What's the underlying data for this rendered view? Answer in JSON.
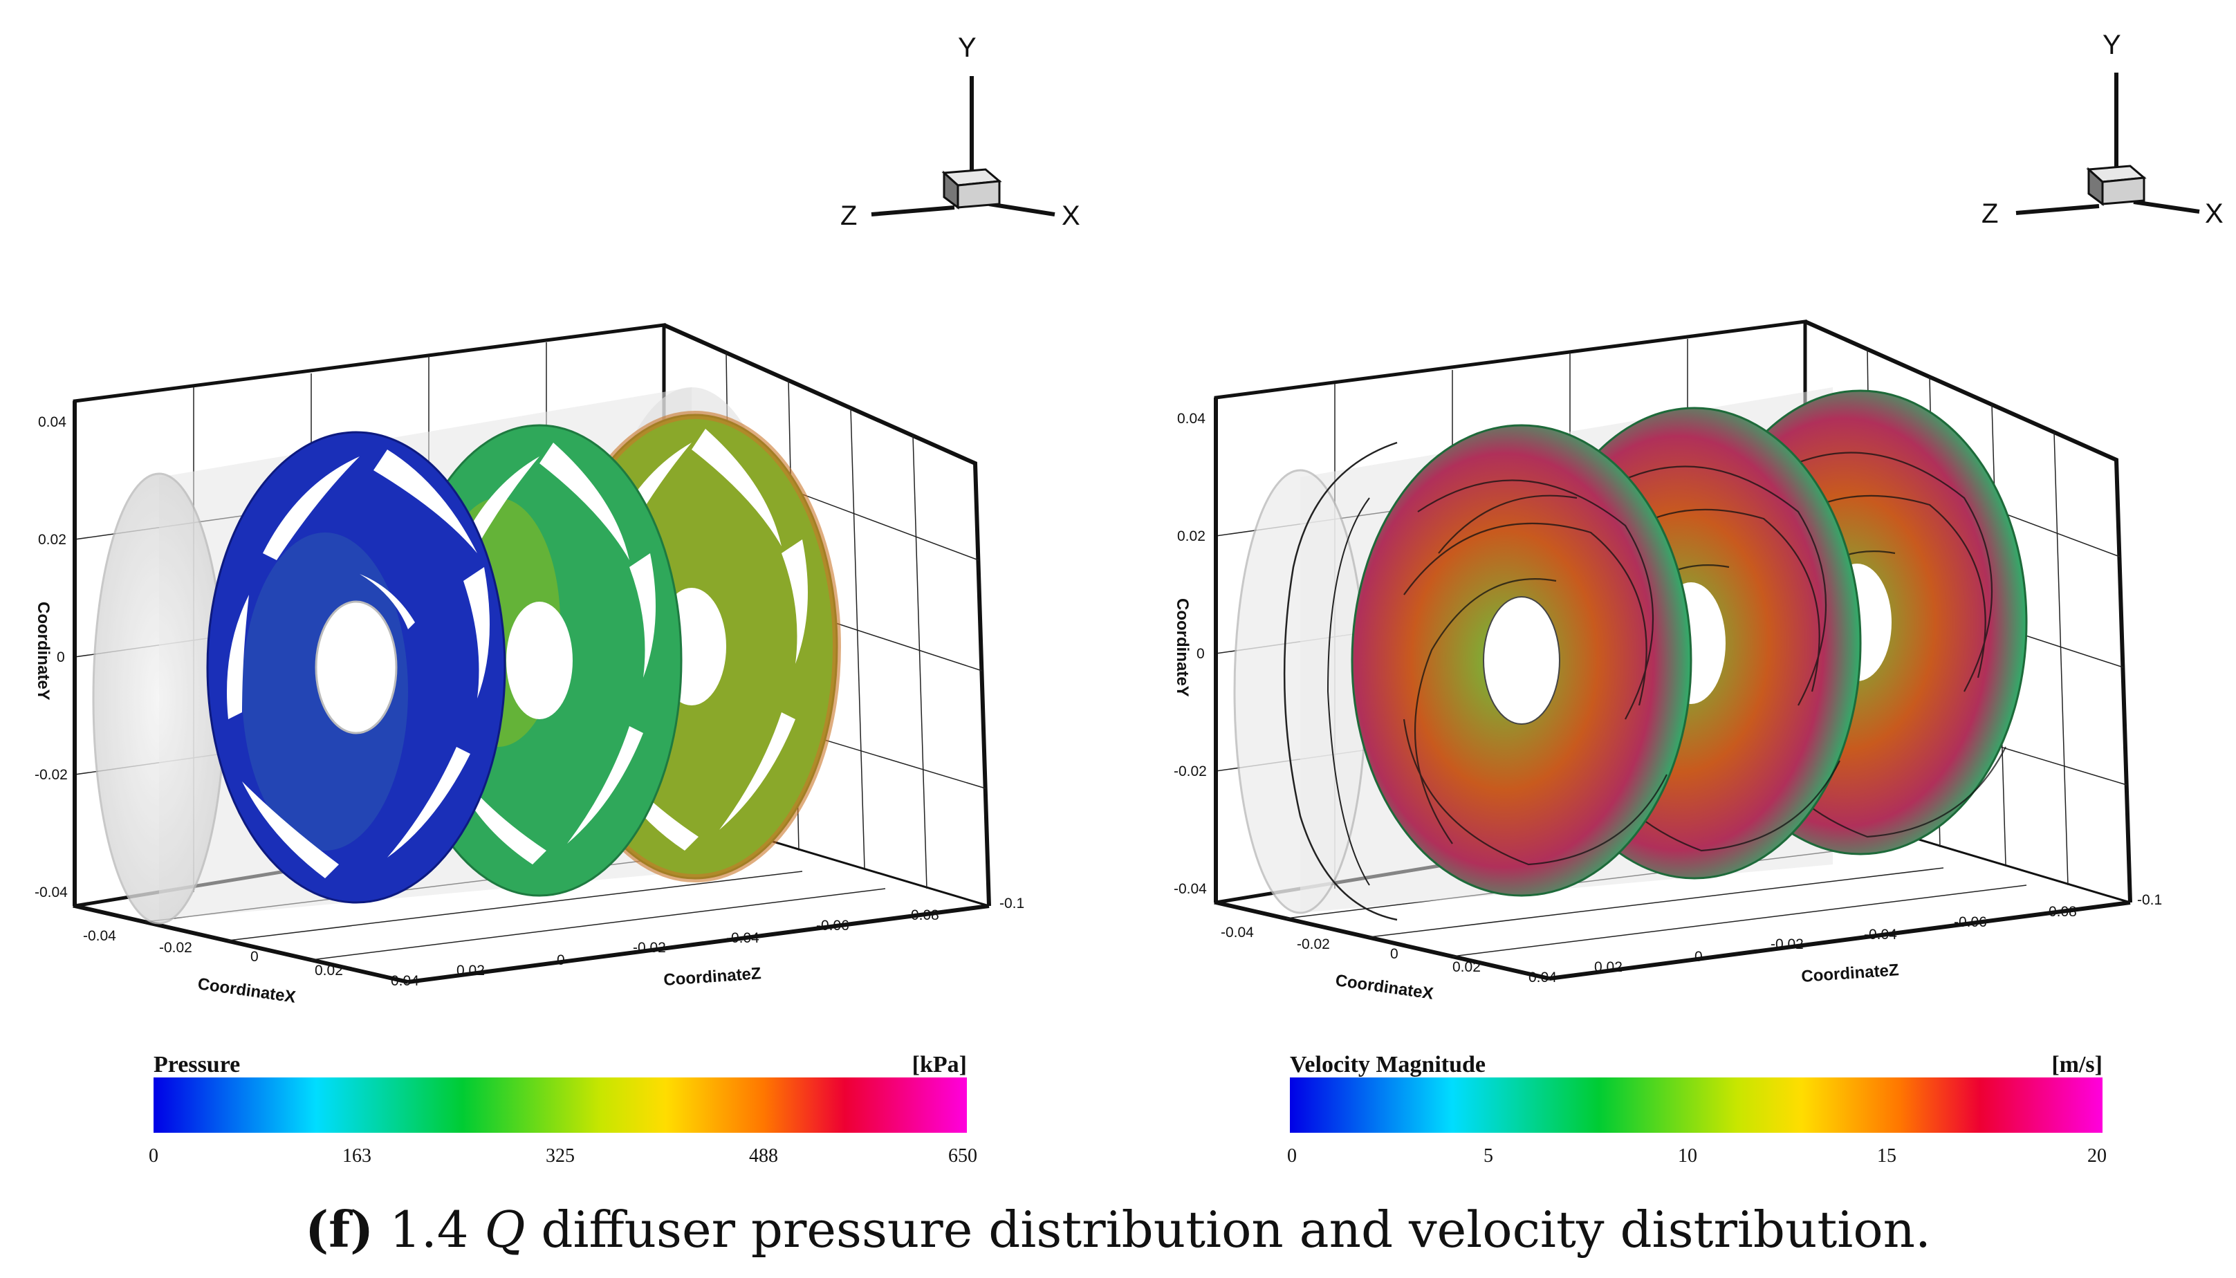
{
  "panels": [
    {
      "triad": {
        "x": "X",
        "y": "Y",
        "z": "Z"
      },
      "axes": {
        "y_title": "CoordinateY",
        "x_title": "CoordinateX",
        "z_title": "CoordinateZ",
        "y_ticks": [
          "0.04",
          "0.02",
          "0",
          "-0.02",
          "-0.04"
        ],
        "x_ticks": [
          "-0.04",
          "-0.02",
          "0",
          "0.02",
          "0.04"
        ],
        "z_ticks": [
          "0.02",
          "0",
          "-0.02",
          "-0.04",
          "-0.06",
          "-0.08",
          "-0.1"
        ]
      },
      "colorbar": {
        "title": "Pressure",
        "unit": "[kPa]",
        "ticks": [
          "0",
          "163",
          "325",
          "488",
          "650"
        ]
      },
      "impeller_colors": [
        "#1a2fb8",
        "#2fa85a",
        "#8aa82a"
      ]
    },
    {
      "triad": {
        "x": "X",
        "y": "Y",
        "z": "Z"
      },
      "axes": {
        "y_title": "CoordinateY",
        "x_title": "CoordinateX",
        "z_title": "CoordinateZ",
        "y_ticks": [
          "0.04",
          "0.02",
          "0",
          "-0.02",
          "-0.04"
        ],
        "x_ticks": [
          "-0.04",
          "-0.02",
          "0",
          "0.02",
          "0.04"
        ],
        "z_ticks": [
          "0.02",
          "0",
          "-0.02",
          "-0.04",
          "-0.06",
          "-0.08",
          "-0.1"
        ]
      },
      "colorbar": {
        "title": "Velocity Magnitude",
        "unit": "[m/s]",
        "ticks": [
          "0",
          "5",
          "10",
          "15",
          "20"
        ]
      },
      "impeller_colors": [
        "#c0392b",
        "#c0392b",
        "#c0392b"
      ]
    }
  ],
  "caption": {
    "label": "(f)",
    "factor": "1.4",
    "q": "Q",
    "text": "diffuser pressure distribution and velocity distribution."
  }
}
